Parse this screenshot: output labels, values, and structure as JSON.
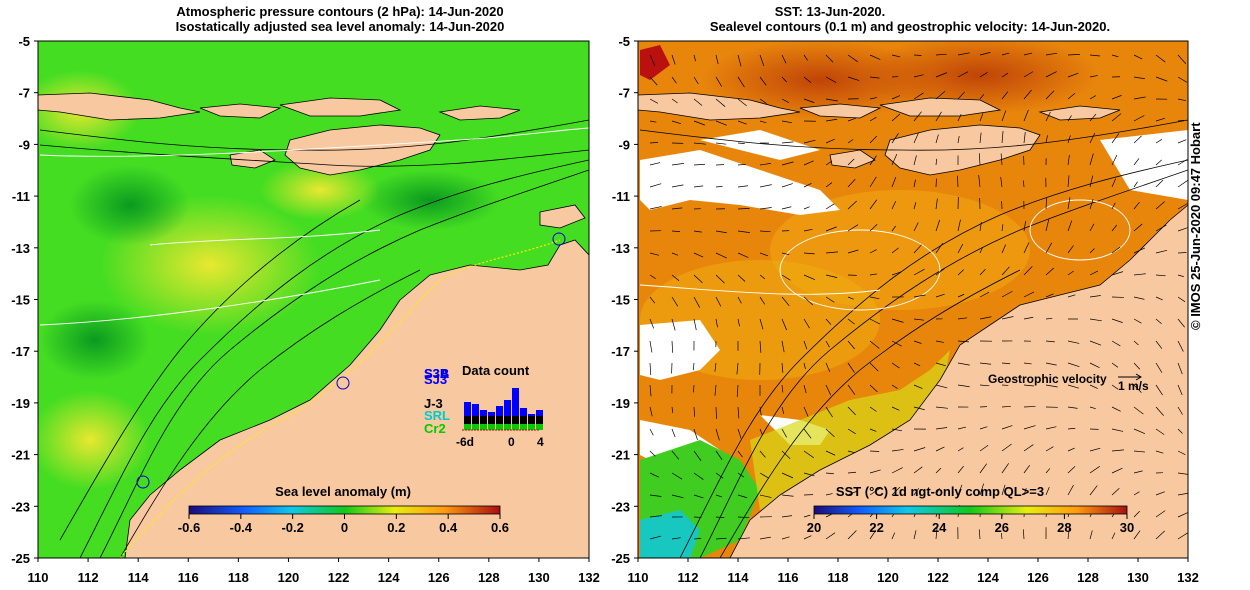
{
  "left_panel": {
    "title_line1": "Atmospheric pressure contours (2 hPa): 14-Jun-2020",
    "title_line2": "Isostatically adjusted sea level anomaly: 14-Jun-2020",
    "colorbar_title": "Sea level anomaly (m)",
    "colorbar_ticks": [
      "-0.6",
      "-0.4",
      "-0.2",
      "0",
      "0.2",
      "0.4",
      "0.6"
    ],
    "legend": {
      "title": "Data count",
      "satellites": [
        {
          "label": "S3B",
          "color": "#0000cc"
        },
        {
          "label": "S3A",
          "color": "#0000ff"
        },
        {
          "label": "SJ3",
          "color": "#0000ff"
        },
        {
          "label": "J-3",
          "color": "#000000"
        },
        {
          "label": "SRL",
          "color": "#00cccc"
        },
        {
          "label": "Cr2",
          "color": "#00cc00"
        }
      ],
      "axis_ticks": [
        "-6d",
        "0",
        "4"
      ]
    }
  },
  "right_panel": {
    "title_line1": "SST: 13-Jun-2020.",
    "title_line2": "Sealevel contours (0.1 m) and geostrophic velocity: 14-Jun-2020.",
    "colorbar_title": "SST (°C) 1d ngt-only comp QL>=3",
    "colorbar_ticks": [
      "20",
      "22",
      "24",
      "26",
      "28",
      "30"
    ],
    "velocity_label": "Geostrophic velocity",
    "velocity_scale": "1 m/s"
  },
  "x_ticks": [
    "110",
    "112",
    "114",
    "116",
    "118",
    "120",
    "122",
    "124",
    "126",
    "128",
    "130",
    "132"
  ],
  "y_ticks": [
    "-5",
    "-7",
    "-9",
    "-11",
    "-13",
    "-15",
    "-17",
    "-19",
    "-21",
    "-23",
    "-25"
  ],
  "credit": "© IMOS 25-Jun-2020 09:47 Hobart",
  "colors": {
    "land": "#f8c8a0",
    "sea_green": "#33dd22",
    "sst_orange": "#e8780a"
  }
}
